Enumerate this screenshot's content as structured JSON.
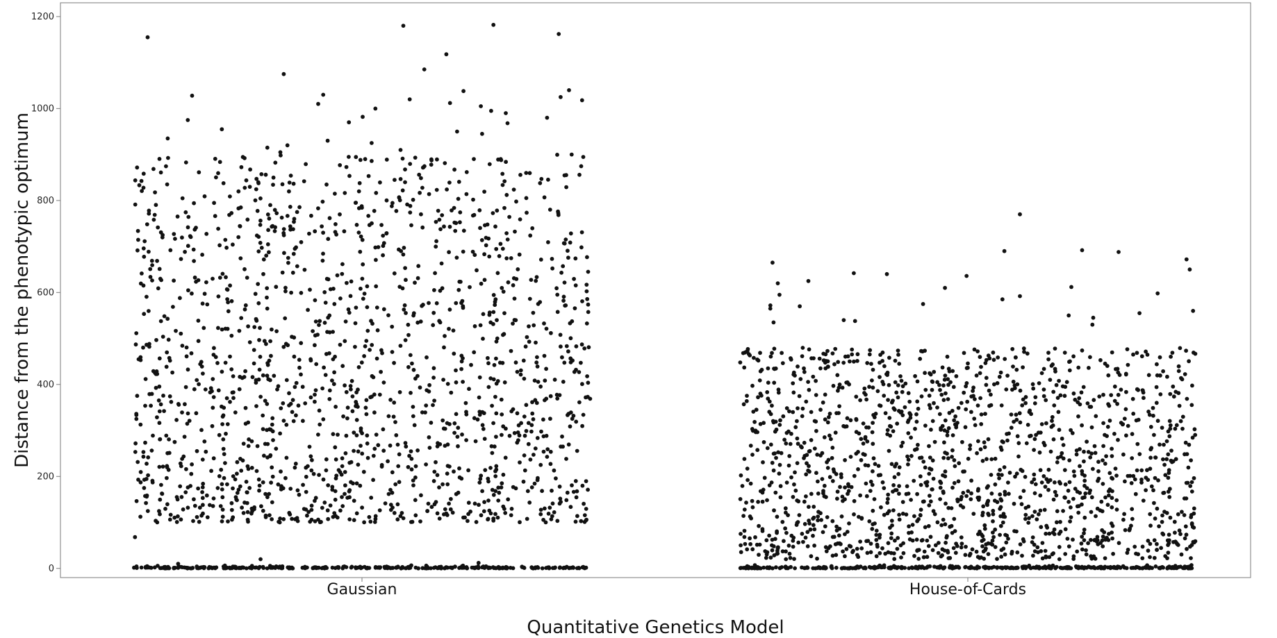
{
  "chart_data": {
    "type": "scatter",
    "title": "",
    "xlabel": "Quantitative Genetics Model",
    "ylabel": "Distance from the phenotypic optimum",
    "categories": [
      "Gaussian",
      "House-of-Cards"
    ],
    "ylim": [
      -20,
      1230
    ],
    "yticks": [
      0,
      200,
      400,
      600,
      800,
      1000,
      1200
    ],
    "grid": false,
    "legend": "none",
    "marker_color": "#111111",
    "jitter": true,
    "series": [
      {
        "category": "Gaussian",
        "approx_point_count": 1900,
        "zero_cluster_points": 320,
        "body_range": [
          100,
          900
        ],
        "median_nonzero": 360,
        "outliers": [
          1180,
          1182,
          1162,
          1155,
          1118,
          1085,
          1075,
          1040,
          1038,
          1030,
          1028,
          1025,
          1020,
          1018,
          1012,
          1010,
          1005,
          1000,
          995,
          990,
          982,
          980,
          975,
          970,
          968,
          955,
          950,
          945,
          935,
          930,
          925,
          920,
          915,
          910,
          905,
          900
        ],
        "low_strays": [
          68,
          20,
          12,
          10
        ]
      },
      {
        "category": "House-of-Cards",
        "approx_point_count": 1900,
        "zero_cluster_points": 360,
        "body_range": [
          20,
          480
        ],
        "median_nonzero": 190,
        "outliers": [
          770,
          692,
          690,
          688,
          672,
          665,
          650,
          642,
          640,
          636,
          625,
          620,
          612,
          610,
          598,
          595,
          592,
          585,
          575,
          572,
          570,
          565,
          560,
          555,
          550,
          545,
          540,
          538,
          535,
          530
        ]
      }
    ]
  }
}
